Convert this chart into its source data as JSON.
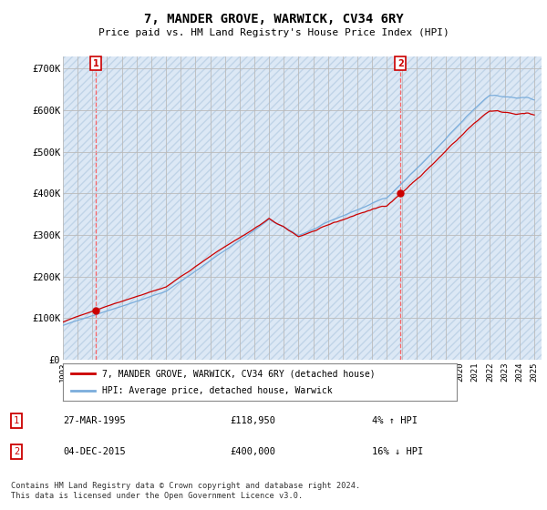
{
  "title": "7, MANDER GROVE, WARWICK, CV34 6RY",
  "subtitle": "Price paid vs. HM Land Registry's House Price Index (HPI)",
  "ytick_labels": [
    "£0",
    "£100K",
    "£200K",
    "£300K",
    "£400K",
    "£500K",
    "£600K",
    "£700K"
  ],
  "yticks": [
    0,
    100000,
    200000,
    300000,
    400000,
    500000,
    600000,
    700000
  ],
  "ylim": [
    0,
    730000
  ],
  "xlim_start": 1993.0,
  "xlim_end": 2025.5,
  "xtick_years": [
    1993,
    1994,
    1995,
    1996,
    1997,
    1998,
    1999,
    2000,
    2001,
    2002,
    2003,
    2004,
    2005,
    2006,
    2007,
    2008,
    2009,
    2010,
    2011,
    2012,
    2013,
    2014,
    2015,
    2016,
    2017,
    2018,
    2019,
    2020,
    2021,
    2022,
    2023,
    2024,
    2025
  ],
  "legend_line1": "7, MANDER GROVE, WARWICK, CV34 6RY (detached house)",
  "legend_line2": "HPI: Average price, detached house, Warwick",
  "transaction1_date": "27-MAR-1995",
  "transaction1_price": "£118,950",
  "transaction1_hpi": "4% ↑ HPI",
  "transaction2_date": "04-DEC-2015",
  "transaction2_price": "£400,000",
  "transaction2_hpi": "16% ↓ HPI",
  "footnote": "Contains HM Land Registry data © Crown copyright and database right 2024.\nThis data is licensed under the Open Government Licence v3.0.",
  "line_color_price": "#cc0000",
  "line_color_hpi": "#7aaddc",
  "bg_fill_color": "#dce8f5",
  "hatch_color": "#c0d4e8",
  "grid_color": "#bbbbbb",
  "transaction1_x": 1995.23,
  "transaction1_y": 118950,
  "transaction2_x": 2015.92,
  "transaction2_y": 400000,
  "seed": 42
}
